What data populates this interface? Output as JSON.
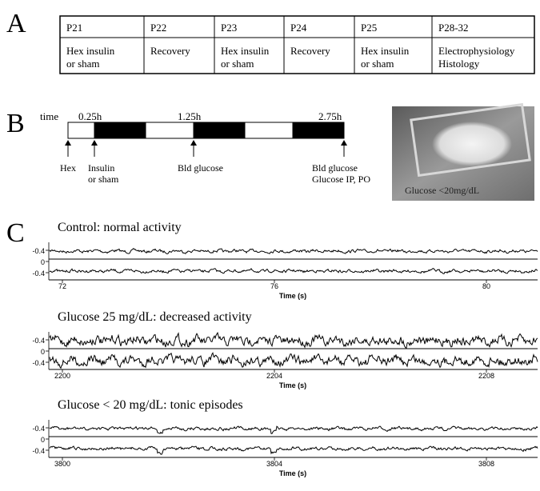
{
  "panel_labels": [
    "A",
    "B",
    "C"
  ],
  "table": {
    "header": [
      "P21",
      "P22",
      "P23",
      "P24",
      "P25",
      "P28-32"
    ],
    "row": [
      [
        "Hex insulin",
        "or sham"
      ],
      [
        "Recovery"
      ],
      [
        "Hex insulin",
        "or sham"
      ],
      [
        "Recovery"
      ],
      [
        "Hex insulin",
        "or sham"
      ],
      [
        "Electrophysiology",
        "Histology"
      ]
    ]
  },
  "timeline": {
    "axis_label": "time",
    "times": [
      "0.25h",
      "1.25h",
      "2.75h"
    ],
    "events": [
      [
        "Hex"
      ],
      [
        "Insulin",
        "or sham"
      ],
      [
        "Bld glucose"
      ],
      [
        "Bld glucose",
        "Glucose IP, PO"
      ]
    ]
  },
  "photo_caption": "Glucose <20mg/dL",
  "traces": [
    {
      "title": "Control: normal activity",
      "yticks": [
        -0.4,
        0,
        -0.4
      ],
      "xticks": [
        72,
        76,
        80
      ],
      "xlabel": "Time (s)"
    },
    {
      "title": "Glucose 25 mg/dL: decreased activity",
      "yticks": [
        -0.4,
        0,
        -0.4
      ],
      "xticks": [
        2200,
        2204,
        2208
      ],
      "xlabel": "Time (s)"
    },
    {
      "title": "Glucose < 20 mg/dL: tonic episodes",
      "yticks": [
        -0.4,
        0,
        -0.4
      ],
      "xticks": [
        3800,
        3804,
        3808
      ],
      "xlabel": "Time (s)"
    }
  ]
}
